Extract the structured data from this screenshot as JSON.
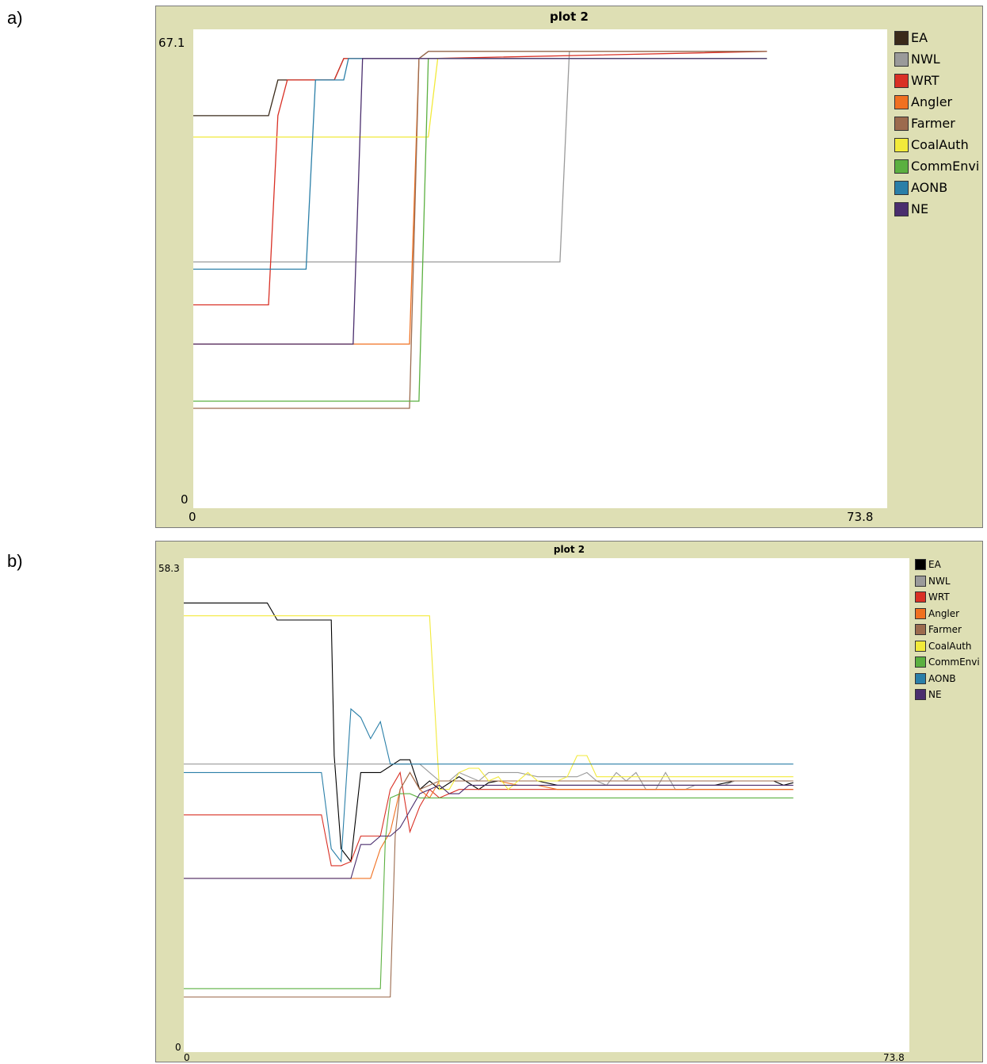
{
  "panels": [
    {
      "panel_label": "a)",
      "title": "plot 2",
      "y_max_label": "67.1",
      "y_min_label": "0",
      "x_min_label": "0",
      "x_max_label": "73.8"
    },
    {
      "panel_label": "b)",
      "title": "plot 2",
      "y_max_label": "58.3",
      "y_min_label": "0",
      "x_min_label": "0",
      "x_max_label": "73.8"
    }
  ],
  "colors": {
    "EA": "#3a2a1a",
    "NWL": "#9a9a9a",
    "WRT": "#d93025",
    "Angler": "#f07020",
    "Farmer": "#9c6b4e",
    "CoalAuth": "#f2ea3a",
    "CommEnvi": "#5bb040",
    "AONB": "#2a7fa8",
    "NE": "#4a2e6e"
  },
  "colors_b_overrides": {
    "EA": "#000000"
  },
  "chart_data": [
    {
      "type": "line",
      "title": "plot 2",
      "xlabel": "",
      "ylabel": "",
      "xlim": [
        0,
        73.8
      ],
      "ylim": [
        0,
        67.1
      ],
      "legend_position": "right",
      "series": [
        {
          "name": "EA",
          "x": [
            0,
            8,
            9,
            12,
            15,
            16,
            24,
            25,
            61
          ],
          "y": [
            55,
            55,
            60,
            60,
            60,
            63,
            63,
            64,
            64
          ]
        },
        {
          "name": "NWL",
          "x": [
            0,
            39,
            40,
            61
          ],
          "y": [
            34.5,
            34.5,
            64,
            64
          ]
        },
        {
          "name": "WRT",
          "x": [
            0,
            8,
            9,
            10,
            12,
            15,
            16,
            25,
            61
          ],
          "y": [
            28.5,
            28.5,
            55,
            60,
            60,
            60,
            63,
            63,
            64
          ]
        },
        {
          "name": "Angler",
          "x": [
            0,
            23,
            24,
            61
          ],
          "y": [
            23,
            23,
            63,
            63
          ]
        },
        {
          "name": "Farmer",
          "x": [
            0,
            23,
            24,
            25,
            61
          ],
          "y": [
            14,
            14,
            63,
            64,
            64
          ]
        },
        {
          "name": "CoalAuth",
          "x": [
            0,
            25,
            26,
            61
          ],
          "y": [
            52,
            52,
            63,
            63
          ]
        },
        {
          "name": "CommEnvi",
          "x": [
            0,
            24,
            25,
            61
          ],
          "y": [
            15,
            15,
            63,
            63
          ]
        },
        {
          "name": "AONB",
          "x": [
            0,
            12,
            13,
            16,
            16.5,
            61
          ],
          "y": [
            33.5,
            33.5,
            60,
            60,
            63,
            63
          ]
        },
        {
          "name": "NE",
          "x": [
            0,
            17,
            18,
            61
          ],
          "y": [
            23,
            23,
            63,
            63
          ]
        }
      ]
    },
    {
      "type": "line",
      "title": "plot 2",
      "xlabel": "",
      "ylabel": "",
      "xlim": [
        0,
        73.8
      ],
      "ylim": [
        0,
        58.3
      ],
      "legend_position": "right",
      "series": [
        {
          "name": "EA",
          "x": [
            0,
            8.5,
            9.5,
            15,
            15.3,
            16,
            17,
            18,
            19,
            20,
            22,
            23,
            24,
            25,
            26,
            28,
            30,
            31,
            32,
            34,
            36,
            38,
            40,
            42,
            44,
            46,
            48,
            50,
            52,
            54,
            56,
            58,
            60,
            61,
            62
          ],
          "y": [
            53,
            53,
            51,
            51,
            35,
            24,
            22.5,
            33,
            33,
            33,
            34.5,
            34.5,
            31,
            32,
            31,
            32.5,
            31,
            31.8,
            32,
            32,
            32,
            31.5,
            31.5,
            31.5,
            31.5,
            31.5,
            31.5,
            31.5,
            31.5,
            31.5,
            32,
            32,
            32,
            31.5,
            31.8
          ]
        },
        {
          "name": "NWL",
          "x": [
            0,
            24,
            25,
            26,
            27,
            28,
            30,
            31,
            32,
            34,
            36,
            38,
            40,
            41,
            42,
            43,
            44,
            45,
            46,
            47,
            48,
            49,
            50,
            51,
            52,
            53,
            54,
            55,
            56,
            58,
            60,
            62
          ],
          "y": [
            34,
            34,
            33,
            32,
            32,
            33,
            32,
            33,
            33,
            33,
            32.5,
            32.5,
            32.5,
            33,
            32,
            31.5,
            33,
            32,
            33,
            31,
            31,
            33,
            31,
            31,
            31.5,
            31.5,
            31.5,
            31.5,
            32,
            32,
            32,
            32
          ]
        },
        {
          "name": "WRT",
          "x": [
            0,
            14,
            15,
            16,
            17,
            18,
            20,
            21,
            22,
            23,
            24,
            25,
            26,
            28,
            30,
            32,
            36,
            40,
            44,
            48,
            52,
            56,
            60,
            62
          ],
          "y": [
            28,
            28,
            22,
            22,
            22.5,
            25.5,
            25.5,
            31,
            33,
            26,
            29,
            31,
            30,
            31,
            31,
            31,
            31,
            31,
            31,
            31,
            31,
            31,
            31,
            31
          ]
        },
        {
          "name": "Angler",
          "x": [
            0,
            17,
            19,
            20,
            21,
            22,
            23,
            24,
            25,
            26,
            28,
            30,
            32,
            34,
            36,
            38,
            40,
            42,
            44,
            48,
            52,
            56,
            60,
            62
          ],
          "y": [
            20.5,
            20.5,
            20.5,
            24,
            26,
            31,
            33,
            31,
            30,
            32,
            32,
            32,
            32,
            31.5,
            31.5,
            31,
            31,
            31,
            31,
            31,
            31,
            31,
            31,
            31
          ]
        },
        {
          "name": "Farmer",
          "x": [
            0,
            21,
            21.5,
            22,
            23,
            24,
            25,
            26,
            28,
            30,
            32,
            34,
            36,
            40,
            44,
            48,
            52,
            56,
            60,
            62
          ],
          "y": [
            6.5,
            6.5,
            25.5,
            31,
            33,
            31,
            31.5,
            32,
            32,
            32,
            32,
            32,
            32,
            32,
            32,
            32,
            32,
            32,
            32,
            32
          ]
        },
        {
          "name": "CoalAuth",
          "x": [
            0,
            25,
            26,
            27,
            28,
            29,
            30,
            31,
            32,
            33,
            34,
            35,
            36,
            37,
            38,
            39,
            40,
            41,
            42,
            43,
            44,
            45,
            46,
            48,
            50,
            52,
            54,
            56,
            58,
            60,
            62
          ],
          "y": [
            51.5,
            51.5,
            31,
            31,
            33,
            33.5,
            33.5,
            32,
            32.5,
            31,
            32,
            33,
            32,
            32,
            32,
            32.5,
            35,
            35,
            32.5,
            32.5,
            32.5,
            32.5,
            32.5,
            32.5,
            32.5,
            32.5,
            32.5,
            32.5,
            32.5,
            32.5,
            32.5
          ]
        },
        {
          "name": "CommEnvi",
          "x": [
            0,
            20,
            20.5,
            21,
            22,
            23,
            24,
            25,
            26,
            28,
            30,
            32,
            36,
            40,
            44,
            48,
            52,
            56,
            60,
            62
          ],
          "y": [
            7.5,
            7.5,
            25,
            30,
            30.5,
            30.5,
            30,
            30,
            30,
            30,
            30,
            30,
            30,
            30,
            30,
            30,
            30,
            30,
            30,
            30
          ]
        },
        {
          "name": "AONB",
          "x": [
            0,
            14,
            15,
            16,
            17,
            18,
            19,
            20,
            21,
            22,
            23,
            24,
            25,
            62
          ],
          "y": [
            33,
            33,
            24,
            22.5,
            40.5,
            39.5,
            37,
            39,
            34,
            34,
            34,
            34,
            34,
            34
          ]
        },
        {
          "name": "NE",
          "x": [
            0,
            17,
            18,
            19,
            20,
            21,
            22,
            23,
            24,
            25,
            26,
            27,
            28,
            29,
            30,
            31,
            32,
            34,
            36,
            40,
            44,
            48,
            52,
            56,
            60,
            62
          ],
          "y": [
            20.5,
            20.5,
            24.5,
            24.5,
            25.5,
            25.5,
            26.5,
            28.5,
            30.5,
            31,
            31.5,
            30.5,
            30.5,
            31.5,
            31.5,
            31.5,
            31.5,
            31.5,
            31.5,
            31.5,
            31.5,
            31.5,
            31.5,
            31.5,
            31.5,
            31.5
          ]
        }
      ]
    }
  ]
}
